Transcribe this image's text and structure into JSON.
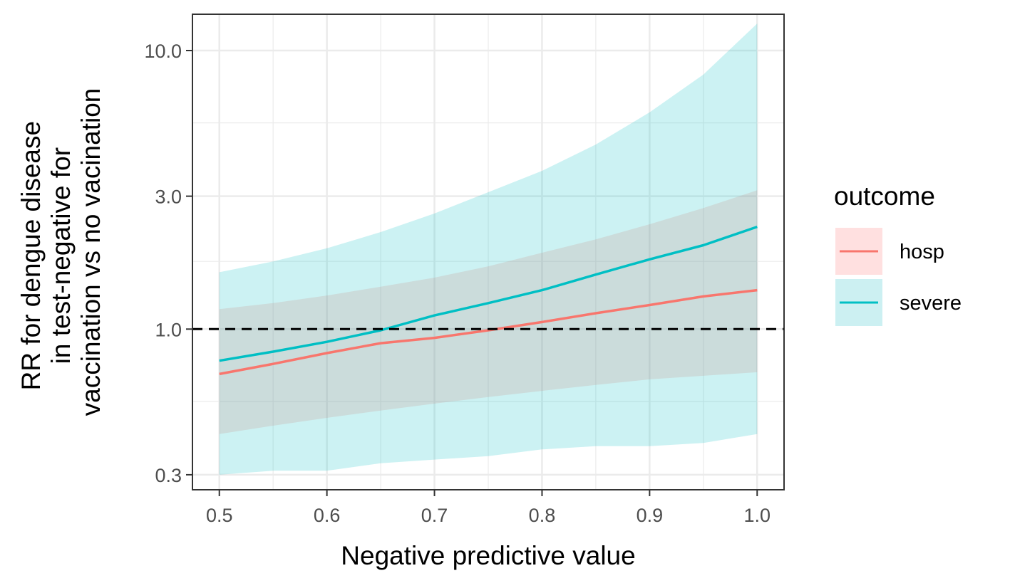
{
  "chart_data": {
    "type": "line",
    "title": "",
    "xlabel": "Negative predictive value",
    "ylabel_lines": [
      "RR for dengue disease",
      "in test-negative for",
      "vaccination vs no vacination"
    ],
    "y_scale": "log",
    "xlim": [
      0.475,
      1.025
    ],
    "ylim": [
      0.265,
      13.5
    ],
    "x_ticks": [
      0.5,
      0.6,
      0.7,
      0.8,
      0.9,
      1.0
    ],
    "x_tick_labels": [
      "0.5",
      "0.6",
      "0.7",
      "0.8",
      "0.9",
      "1.0"
    ],
    "y_ticks": [
      0.3,
      1.0,
      3.0,
      10.0
    ],
    "y_tick_labels": [
      "0.3",
      "1.0",
      "3.0",
      "10.0"
    ],
    "y_minor_ticks": [
      0.55,
      1.75,
      5.5
    ],
    "x_minor_ticks": [
      0.55,
      0.65,
      0.75,
      0.85,
      0.95
    ],
    "grid": true,
    "reference_line": {
      "y": 1.0,
      "style": "dashed",
      "color": "#000000"
    },
    "legend": {
      "title": "outcome",
      "position": "right",
      "entries": [
        "hosp",
        "severe"
      ]
    },
    "x": [
      0.5,
      0.55,
      0.6,
      0.65,
      0.7,
      0.75,
      0.8,
      0.85,
      0.9,
      0.95,
      1.0
    ],
    "series": [
      {
        "name": "hosp",
        "color": "#F8766D",
        "fill": "#FFE0E0",
        "values": [
          0.69,
          0.75,
          0.82,
          0.89,
          0.93,
          0.99,
          1.06,
          1.14,
          1.22,
          1.31,
          1.38
        ],
        "lower": [
          0.42,
          0.45,
          0.48,
          0.51,
          0.54,
          0.57,
          0.6,
          0.63,
          0.66,
          0.68,
          0.7
        ],
        "upper": [
          1.18,
          1.24,
          1.32,
          1.42,
          1.53,
          1.68,
          1.88,
          2.1,
          2.38,
          2.72,
          3.15
        ]
      },
      {
        "name": "severe",
        "color": "#00BFC4",
        "fill": "#CCF0F2",
        "values": [
          0.77,
          0.83,
          0.9,
          0.99,
          1.12,
          1.24,
          1.38,
          1.57,
          1.78,
          2.0,
          2.33
        ],
        "lower": [
          0.3,
          0.31,
          0.31,
          0.33,
          0.34,
          0.35,
          0.37,
          0.38,
          0.38,
          0.39,
          0.42
        ],
        "upper": [
          1.6,
          1.75,
          1.95,
          2.23,
          2.6,
          3.1,
          3.7,
          4.6,
          6.0,
          8.2,
          12.5
        ]
      }
    ]
  }
}
